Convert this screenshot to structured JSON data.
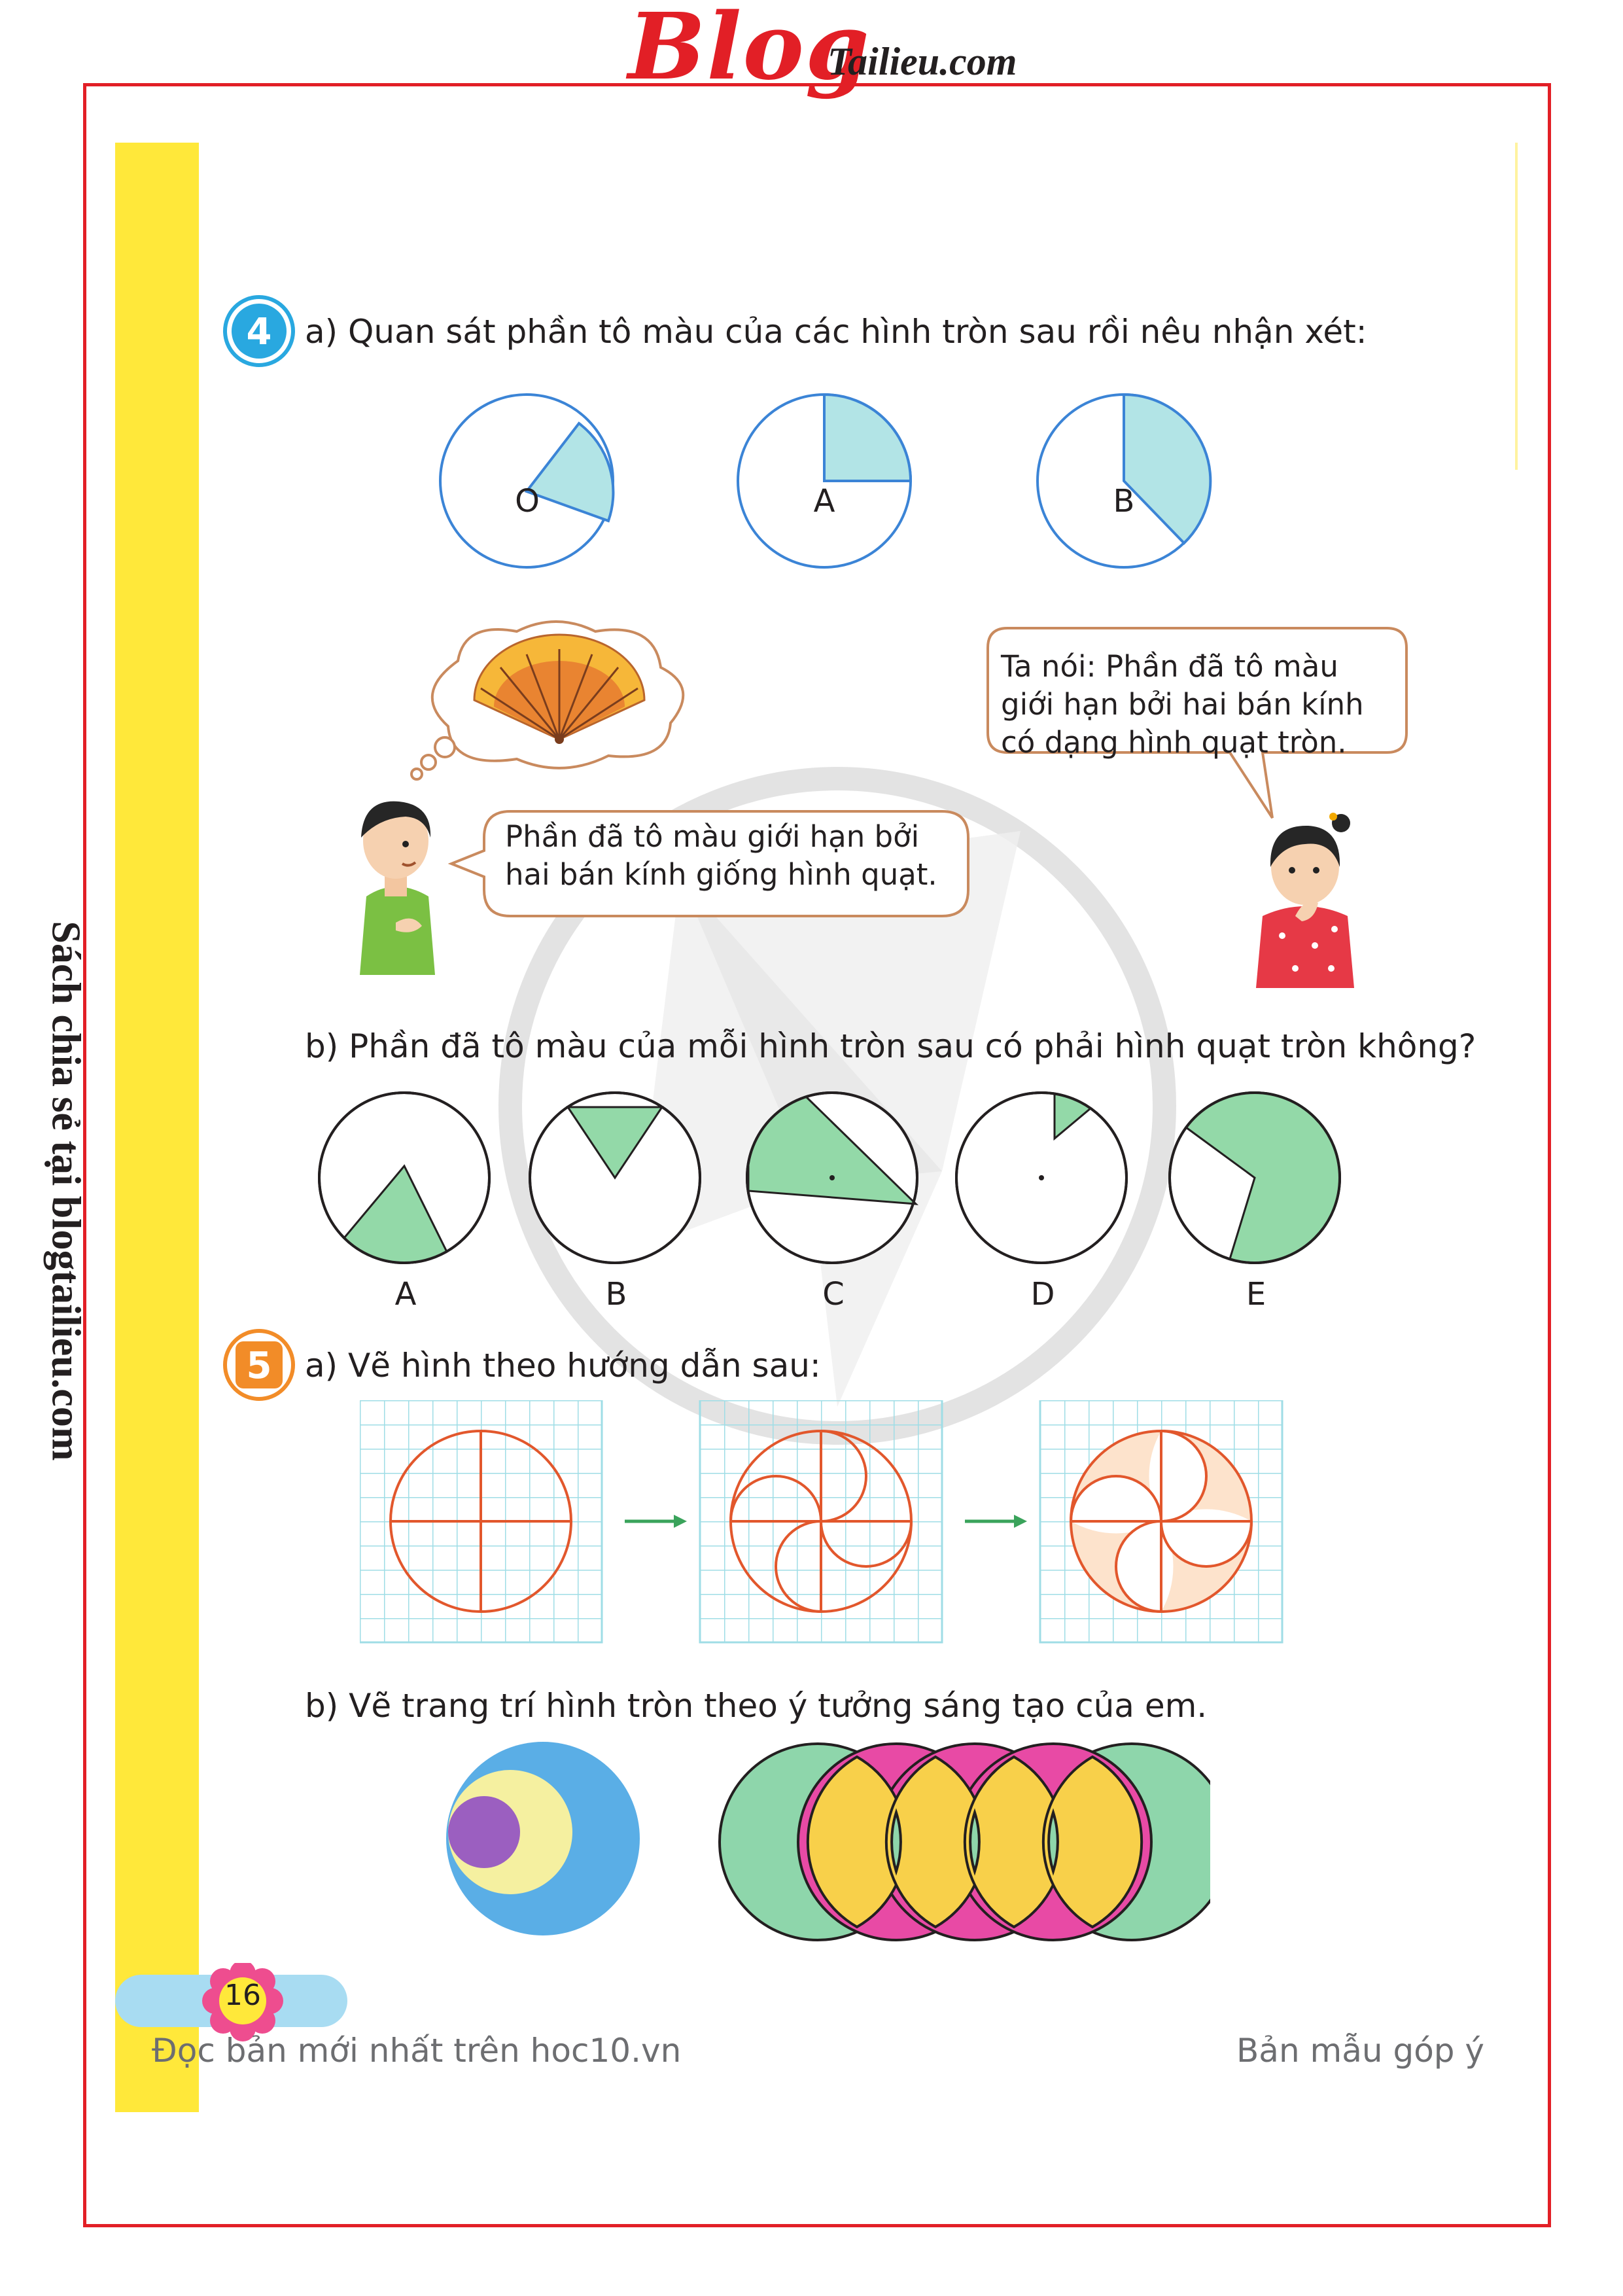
{
  "header": {
    "logo_main": "Blog",
    "logo_suffix": "Tailieu.com"
  },
  "side_note": "Sách chia sẻ tại blogtailieu.com",
  "exercise4": {
    "number": "4",
    "part_a": "a) Quan sát phần tô màu của các hình tròn sau rồi nêu nhận xét:",
    "circles_a": [
      "O",
      "A",
      "B"
    ],
    "boy_bubble": [
      "Phần đã tô màu giới hạn bởi",
      "hai bán kính giống hình quạt."
    ],
    "girl_bubble": [
      "Ta nói: Phần đã tô màu",
      "giới hạn bởi hai bán kính",
      "có dạng hình quạt tròn."
    ],
    "part_b": "b) Phần đã tô màu của mỗi hình tròn sau có phải hình quạt tròn không?",
    "circles_b": [
      "A",
      "B",
      "C",
      "D",
      "E"
    ]
  },
  "exercise5": {
    "number": "5",
    "part_a": "a) Vẽ hình theo hướng dẫn sau:",
    "part_b": "b) Vẽ trang trí hình tròn theo ý tưởng sáng tạo của em."
  },
  "footer": {
    "page_number": "16",
    "left_text": "Đọc bản mới nhất trên hoc10.vn",
    "right_text": "Bản mẫu góp ý"
  },
  "colors": {
    "frame_red": "#e21f26",
    "sidebar_yellow": "#ffe83a",
    "sector_cyan": "#b2e4e6",
    "sector_green": "#93d9a8",
    "circle_blue": "#3b84d6",
    "drawing_orange": "#e2572c",
    "grid_cyan": "#9fdde6"
  }
}
